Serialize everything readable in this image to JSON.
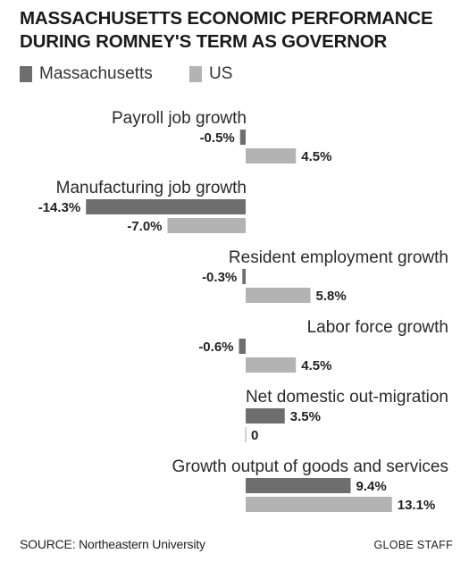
{
  "chart_data": {
    "type": "bar",
    "orientation": "horizontal",
    "title_lines": [
      "MASSACHUSETTS ECONOMIC PERFORMANCE",
      "DURING ROMNEY'S TERM AS GOVERNOR"
    ],
    "categories": [
      "Payroll job growth",
      "Manufacturing job growth",
      "Resident employment growth",
      "Labor force growth",
      "Net domestic out-migration",
      "Growth output of goods and services"
    ],
    "series": [
      {
        "name": "Massachusetts",
        "color": "#6e6e6e",
        "values": [
          -0.5,
          -14.3,
          -0.3,
          -0.6,
          3.5,
          9.4
        ],
        "labels": [
          "-0.5%",
          "-14.3%",
          "-0.3%",
          "-0.6%",
          "3.5%",
          "9.4%"
        ]
      },
      {
        "name": "US",
        "color": "#b3b3b3",
        "values": [
          4.5,
          -7.0,
          5.8,
          4.5,
          0,
          13.1
        ],
        "labels": [
          "4.5%",
          "-7.0%",
          "5.8%",
          "4.5%",
          "0",
          "13.1%"
        ]
      }
    ],
    "legend_position": "top-left",
    "grid": false,
    "xlabel": "",
    "ylabel": ""
  },
  "footer": {
    "source": "SOURCE: Northeastern University",
    "credit": "GLOBE STAFF"
  }
}
